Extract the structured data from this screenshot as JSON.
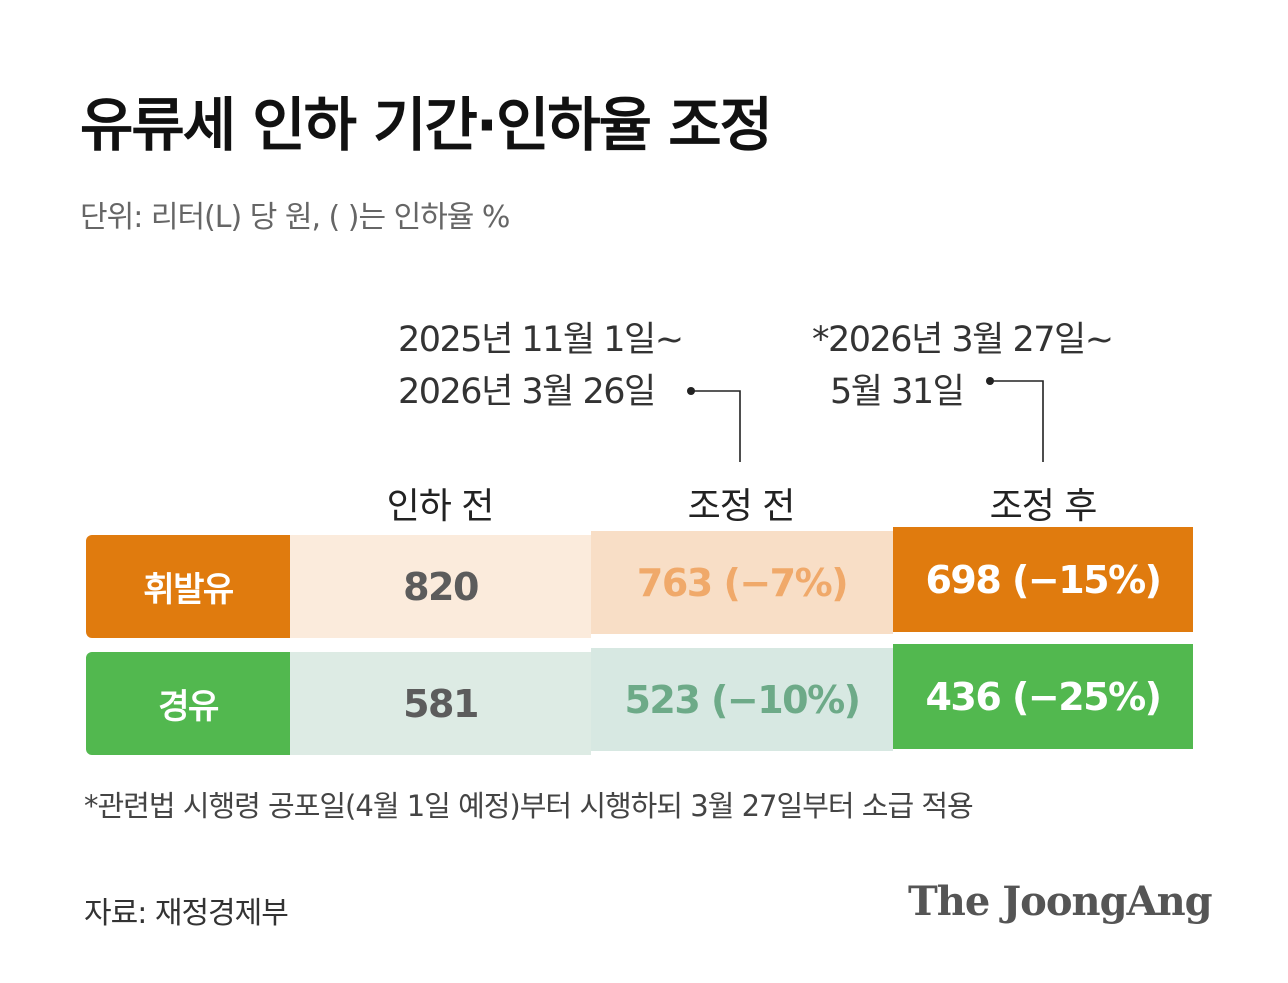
{
  "title": "유류세 인하 기간·인하율 조정",
  "subtitle": "단위: 리터(L) 당 원, ( )는 인하율 %",
  "periods": {
    "before_adjust": {
      "line1": "2025년 11월 1일~",
      "line2": "2026년 3월 26일"
    },
    "after_adjust": {
      "line1": "*2026년 3월 27일~",
      "line2": "5월 31일"
    }
  },
  "chart_data": {
    "type": "table",
    "columns": [
      "인하 전",
      "조정 전",
      "조정 후"
    ],
    "rows": [
      {
        "name": "휘발유",
        "cells": [
          "820",
          "763 (−7%)",
          "698 (−15%)"
        ],
        "values": [
          820,
          763,
          698
        ],
        "rates": [
          null,
          -7,
          -15
        ]
      },
      {
        "name": "경유",
        "cells": [
          "581",
          "523 (−10%)",
          "436 (−25%)"
        ],
        "values": [
          581,
          523,
          436
        ],
        "rates": [
          null,
          -10,
          -25
        ]
      }
    ]
  },
  "colors": {
    "gasoline_main": "#E07B0E",
    "gasoline_light": "#FBEBDC",
    "gasoline_mid": "#F8DEC6",
    "gasoline_mid_text": "#F0A96A",
    "diesel_main": "#52B84F",
    "diesel_light": "#DDEBE4",
    "diesel_mid": "#D7E8E2",
    "diesel_mid_text": "#6DAA88",
    "gray_text": "#5C5C5C"
  },
  "footnote": "*관련법 시행령 공포일(4월 1일 예정)부터 시행하되 3월 27일부터 소급 적용",
  "source": "자료: 재정경제부",
  "brand": "The JoongAng"
}
